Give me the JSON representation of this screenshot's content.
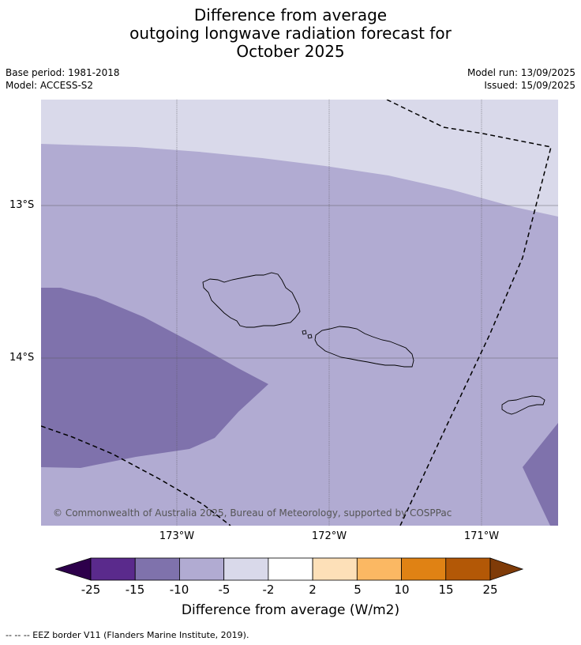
{
  "title": {
    "line1": "Difference from average",
    "line2": "outgoing longwave radiation forecast for",
    "line3": "October 2025"
  },
  "meta": {
    "base_period": "Base period: 1981-2018",
    "model": "Model: ACCESS-S2",
    "model_run": "Model run: 13/09/2025",
    "issued": "Issued: 15/09/2025"
  },
  "map": {
    "lat_labels": [
      "13°S",
      "14°S"
    ],
    "lon_labels": [
      "173°W",
      "172°W",
      "171°W"
    ],
    "copyright": "© Commonwealth of Australia 2025, Bureau of Meteorology, supported by COSPPac",
    "region_colors": {
      "very_light": "#d9d9ea",
      "light": "#b1abd2",
      "medium": "#7f72ac",
      "dark": "#5a2a8c"
    }
  },
  "colorbar": {
    "tick_labels": [
      "-25",
      "-15",
      "-10",
      "-5",
      "-2",
      "2",
      "5",
      "10",
      "15",
      "25"
    ],
    "colors": [
      "#5a2a8c",
      "#7f72ac",
      "#b1abd2",
      "#d9d9ea",
      "#ffffff",
      "#fde0b8",
      "#fbb863",
      "#e08214",
      "#b35806"
    ],
    "under_color": "#2d004b",
    "over_color": "#7f3b08",
    "label": "Difference from average (W/m2)"
  },
  "footnote": "--  --  -- EEZ border V11 (Flanders Marine Institute, 2019)."
}
